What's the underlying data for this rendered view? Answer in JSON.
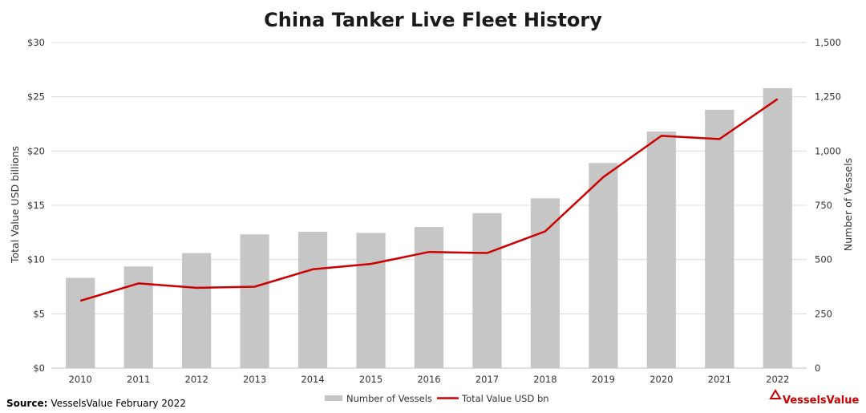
{
  "chart_data": {
    "type": "bar",
    "title": "China Tanker Live Fleet History",
    "categories": [
      "2010",
      "2011",
      "2012",
      "2013",
      "2014",
      "2015",
      "2016",
      "2017",
      "2018",
      "2019",
      "2020",
      "2021",
      "2022"
    ],
    "series": [
      {
        "name": "Number of Vessels",
        "type": "bar",
        "axis": "right",
        "color": "#c6c6c6",
        "values": [
          416,
          468,
          530,
          616,
          628,
          623,
          650,
          714,
          782,
          945,
          1090,
          1190,
          1290
        ]
      },
      {
        "name": "Total Value USD bn",
        "type": "line",
        "axis": "left",
        "color": "#cc0000",
        "values": [
          6.2,
          7.8,
          7.4,
          7.5,
          9.1,
          9.6,
          10.7,
          10.6,
          12.6,
          17.6,
          21.4,
          21.1,
          24.8
        ]
      }
    ],
    "ylabel_left": "Total Value USD billions",
    "ylabel_right": "Number of Vessels",
    "ylim_left": [
      0,
      30
    ],
    "ylim_right": [
      0,
      1500
    ],
    "yticks_left": [
      "$0",
      "$5",
      "$10",
      "$15",
      "$20",
      "$25",
      "$30"
    ],
    "yticks_right": [
      "0",
      "250",
      "500",
      "750",
      "1,000",
      "1,250",
      "1,500"
    ],
    "grid": true,
    "legend_position": "bottom"
  },
  "source": {
    "label": "Source:",
    "text": "VesselsValue February 2022"
  },
  "logo": {
    "text": "VesselsValue",
    "color": "#cc0000"
  }
}
